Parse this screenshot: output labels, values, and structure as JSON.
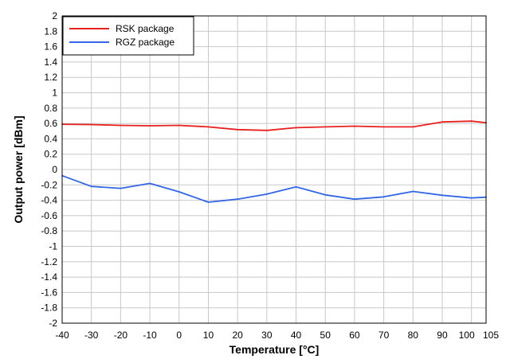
{
  "chart_data": {
    "type": "line",
    "xlabel": "Temperature [°C]",
    "ylabel": "Output power [dBm]",
    "xlim": [
      -40,
      105
    ],
    "ylim": [
      -2,
      2
    ],
    "x_ticks": [
      -40,
      -30,
      -20,
      -10,
      0,
      10,
      20,
      30,
      40,
      50,
      60,
      70,
      80,
      90,
      100,
      105
    ],
    "y_ticks": [
      2,
      1.8,
      1.6,
      1.4,
      1.2,
      1,
      0.8,
      0.6,
      0.4,
      0.2,
      0,
      -0.2,
      -0.4,
      -0.6,
      -0.8,
      -1,
      -1.2,
      -1.4,
      -1.6,
      -1.8,
      -2
    ],
    "grid": true,
    "legend_position": "top-left",
    "series": [
      {
        "name": "RSK package",
        "color": "#e8201e",
        "x": [
          -40,
          -30,
          -20,
          -10,
          0,
          10,
          20,
          30,
          40,
          50,
          60,
          70,
          80,
          90,
          100,
          105
        ],
        "values": [
          0.59,
          0.585,
          0.575,
          0.57,
          0.575,
          0.555,
          0.52,
          0.51,
          0.545,
          0.555,
          0.565,
          0.555,
          0.555,
          0.62,
          0.63,
          0.61
        ]
      },
      {
        "name": "RGZ package",
        "color": "#3366e6",
        "x": [
          -40,
          -30,
          -20,
          -10,
          0,
          10,
          20,
          30,
          40,
          50,
          60,
          70,
          80,
          90,
          100,
          105
        ],
        "values": [
          -0.08,
          -0.22,
          -0.245,
          -0.18,
          -0.29,
          -0.425,
          -0.385,
          -0.32,
          -0.225,
          -0.33,
          -0.385,
          -0.355,
          -0.285,
          -0.335,
          -0.37,
          -0.36
        ]
      }
    ]
  }
}
